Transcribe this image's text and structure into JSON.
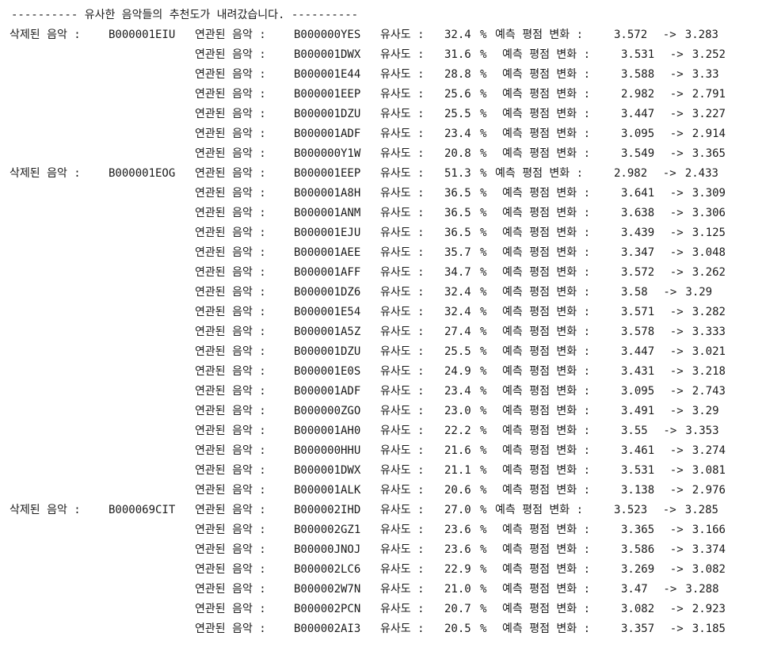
{
  "header": "---------- 유사한 음악들의 추천도가 내려갔습니다. ----------",
  "labels": {
    "deleted": "삭제된 음악 :",
    "related": "연관된 음악 :",
    "similarity": "유사도 :",
    "percent": "%",
    "change": "예측 평점 변화 :",
    "arrow": "->"
  },
  "groups": [
    {
      "deleted_id": "B000001EIU",
      "rows": [
        {
          "id": "B000000YES",
          "sim": "32.4",
          "before": "3.572",
          "after": "3.283"
        },
        {
          "id": "B000001DWX",
          "sim": "31.6",
          "before": "3.531",
          "after": "3.252"
        },
        {
          "id": "B000001E44",
          "sim": "28.8",
          "before": "3.588",
          "after": "3.33"
        },
        {
          "id": "B000001EEP",
          "sim": "25.6",
          "before": "2.982",
          "after": "2.791"
        },
        {
          "id": "B000001DZU",
          "sim": "25.5",
          "before": "3.447",
          "after": "3.227"
        },
        {
          "id": "B000001ADF",
          "sim": "23.4",
          "before": "3.095",
          "after": "2.914"
        },
        {
          "id": "B000000Y1W",
          "sim": "20.8",
          "before": "3.549",
          "after": "3.365"
        }
      ]
    },
    {
      "deleted_id": "B000001EOG",
      "rows": [
        {
          "id": "B000001EEP",
          "sim": "51.3",
          "before": "2.982",
          "after": "2.433"
        },
        {
          "id": "B000001A8H",
          "sim": "36.5",
          "before": "3.641",
          "after": "3.309"
        },
        {
          "id": "B000001ANM",
          "sim": "36.5",
          "before": "3.638",
          "after": "3.306"
        },
        {
          "id": "B000001EJU",
          "sim": "36.5",
          "before": "3.439",
          "after": "3.125"
        },
        {
          "id": "B000001AEE",
          "sim": "35.7",
          "before": "3.347",
          "after": "3.048"
        },
        {
          "id": "B000001AFF",
          "sim": "34.7",
          "before": "3.572",
          "after": "3.262"
        },
        {
          "id": "B000001DZ6",
          "sim": "32.4",
          "before": "3.58",
          "after": "3.29"
        },
        {
          "id": "B000001E54",
          "sim": "32.4",
          "before": "3.571",
          "after": "3.282"
        },
        {
          "id": "B000001A5Z",
          "sim": "27.4",
          "before": "3.578",
          "after": "3.333"
        },
        {
          "id": "B000001DZU",
          "sim": "25.5",
          "before": "3.447",
          "after": "3.021"
        },
        {
          "id": "B000001E0S",
          "sim": "24.9",
          "before": "3.431",
          "after": "3.218"
        },
        {
          "id": "B000001ADF",
          "sim": "23.4",
          "before": "3.095",
          "after": "2.743"
        },
        {
          "id": "B000000ZGO",
          "sim": "23.0",
          "before": "3.491",
          "after": "3.29"
        },
        {
          "id": "B000001AH0",
          "sim": "22.2",
          "before": "3.55",
          "after": "3.353"
        },
        {
          "id": "B000000HHU",
          "sim": "21.6",
          "before": "3.461",
          "after": "3.274"
        },
        {
          "id": "B000001DWX",
          "sim": "21.1",
          "before": "3.531",
          "after": "3.081"
        },
        {
          "id": "B000001ALK",
          "sim": "20.6",
          "before": "3.138",
          "after": "2.976"
        }
      ]
    },
    {
      "deleted_id": "B000069CIT",
      "rows": [
        {
          "id": "B000002IHD",
          "sim": "27.0",
          "before": "3.523",
          "after": "3.285"
        },
        {
          "id": "B000002GZ1",
          "sim": "23.6",
          "before": "3.365",
          "after": "3.166"
        },
        {
          "id": "B00000JNOJ",
          "sim": "23.6",
          "before": "3.586",
          "after": "3.374"
        },
        {
          "id": "B000002LC6",
          "sim": "22.9",
          "before": "3.269",
          "after": "3.082"
        },
        {
          "id": "B000002W7N",
          "sim": "21.0",
          "before": "3.47",
          "after": "3.288"
        },
        {
          "id": "B000002PCN",
          "sim": "20.7",
          "before": "3.082",
          "after": "2.923"
        },
        {
          "id": "B000002AI3",
          "sim": "20.5",
          "before": "3.357",
          "after": "3.185"
        }
      ]
    }
  ]
}
